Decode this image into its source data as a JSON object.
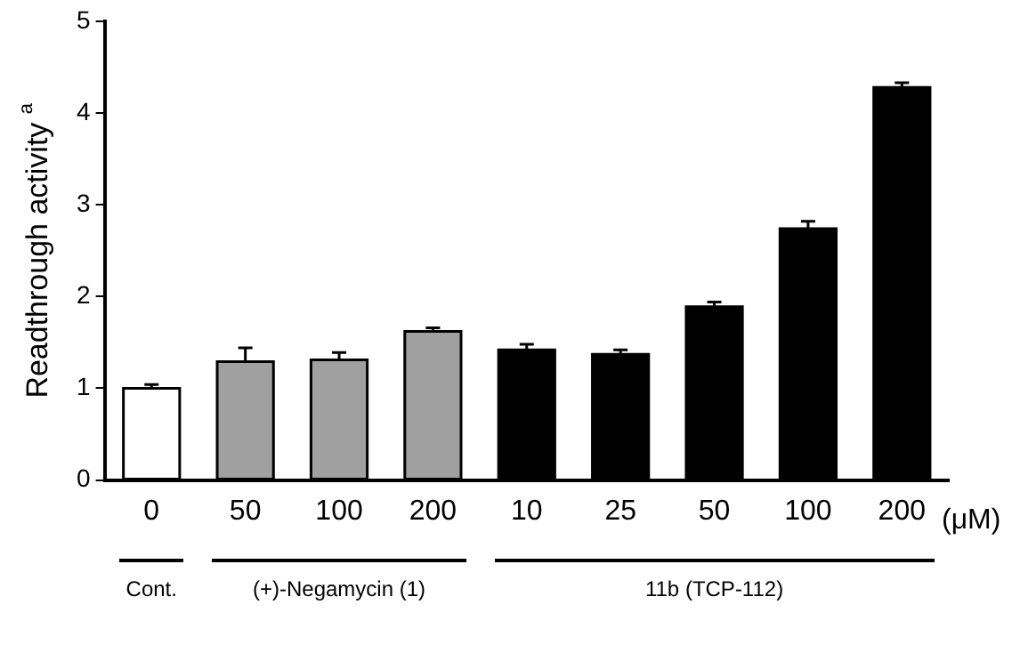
{
  "chart_data": {
    "type": "bar",
    "ylabel": "Readthrough activity $^{a}$",
    "categories": [
      "0",
      "50",
      "100",
      "200",
      "10",
      "25",
      "50",
      "100",
      "200"
    ],
    "values": [
      1.0,
      1.29,
      1.31,
      1.62,
      1.42,
      1.37,
      1.89,
      2.74,
      4.28
    ],
    "errors": [
      0.04,
      0.15,
      0.08,
      0.04,
      0.06,
      0.05,
      0.05,
      0.08,
      0.05
    ],
    "colors": [
      "#ffffff",
      "#a0a0a0",
      "#a0a0a0",
      "#a0a0a0",
      "#000000",
      "#000000",
      "#000000",
      "#000000",
      "#000000"
    ],
    "ylim": [
      0,
      5
    ],
    "yticks": [
      0,
      1,
      2,
      3,
      4,
      5
    ],
    "grid": false,
    "legend": false,
    "annotations": [
      "(μM)",
      "Cont.",
      "(+)-Negamycin (1)",
      "11b (TCP-112)"
    ]
  }
}
